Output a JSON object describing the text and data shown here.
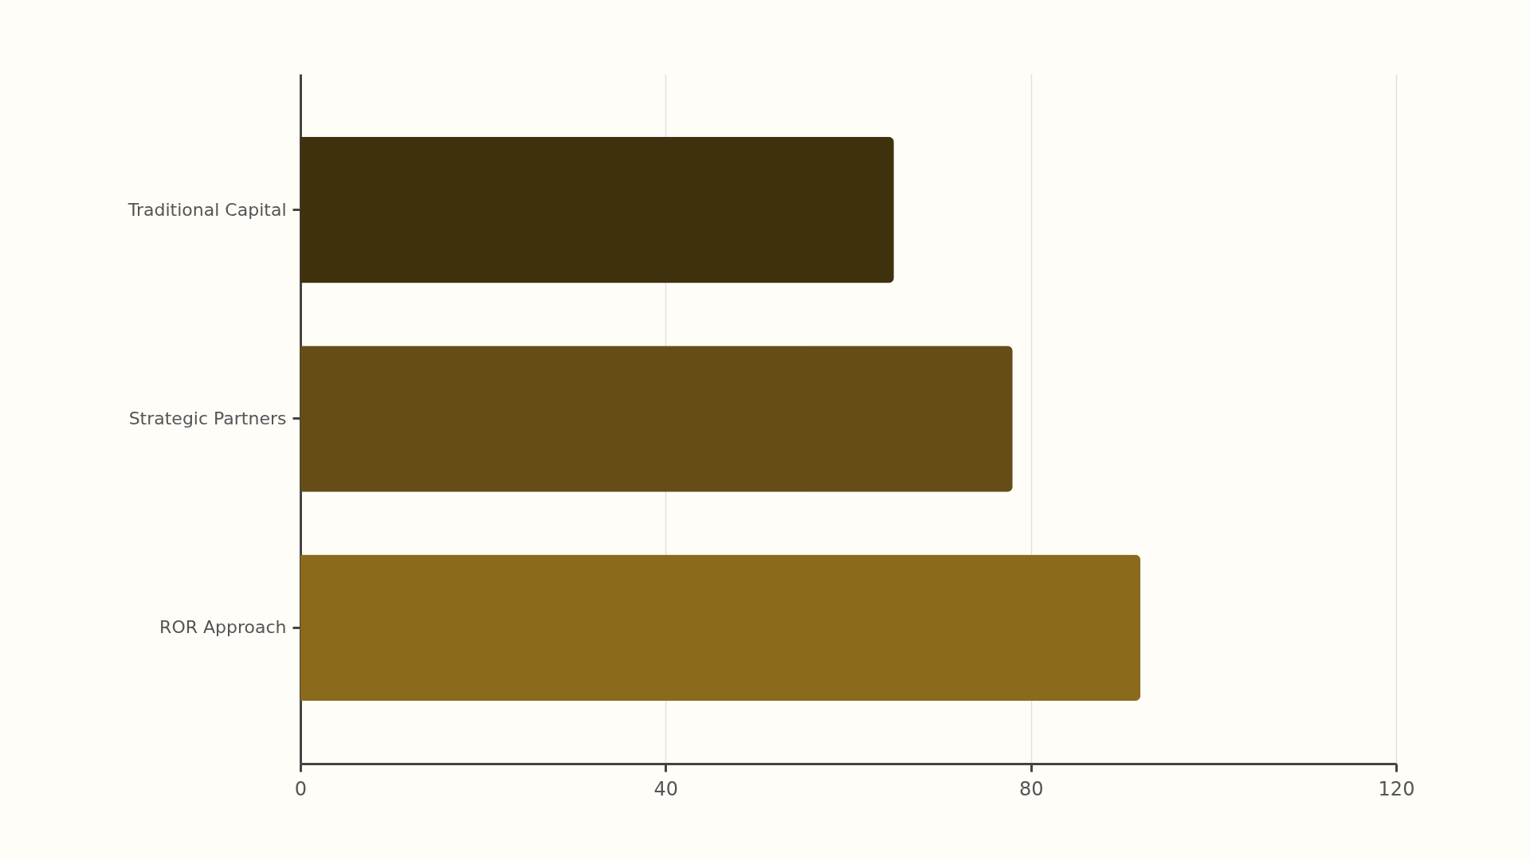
{
  "chart_data": {
    "type": "bar",
    "orientation": "horizontal",
    "categories": [
      "Traditional Capital",
      "Strategic Partners",
      "ROR Approach"
    ],
    "values": [
      65,
      78,
      92
    ],
    "colors": [
      "#40310e",
      "#644d16",
      "#8b6a1c"
    ],
    "xlim": [
      0,
      120
    ],
    "xticks": [
      0,
      40,
      80,
      120
    ],
    "grid": "x",
    "legend": false
  }
}
